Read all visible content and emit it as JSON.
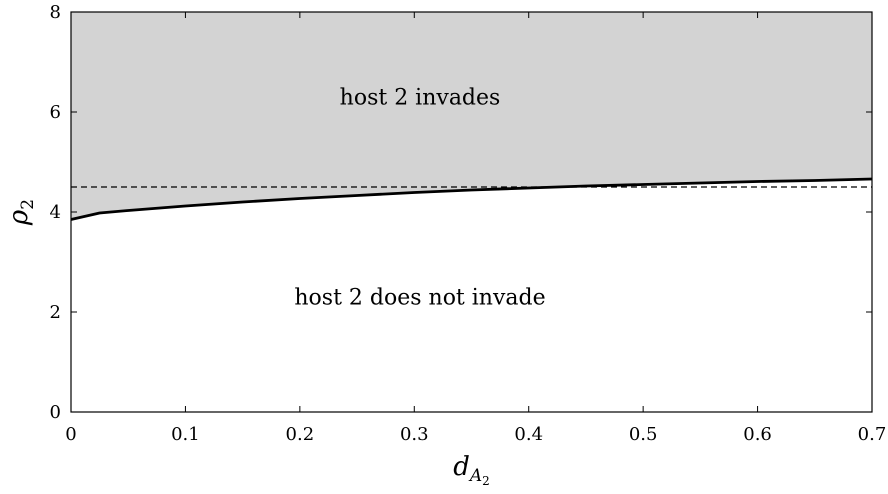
{
  "chart_data": {
    "type": "area",
    "xlabel": {
      "base": "d",
      "sub": "A",
      "subsub": "2"
    },
    "ylabel": {
      "base": "ρ",
      "sub": "2"
    },
    "xlim": [
      0,
      0.7
    ],
    "ylim": [
      0,
      8
    ],
    "x_ticks": [
      0,
      0.1,
      0.2,
      0.3,
      0.4,
      0.5,
      0.6,
      0.7
    ],
    "x_tick_labels": [
      "0",
      "0.1",
      "0.2",
      "0.3",
      "0.4",
      "0.5",
      "0.6",
      "0.7"
    ],
    "y_ticks": [
      0,
      2,
      4,
      6,
      8
    ],
    "y_tick_labels": [
      "0",
      "2",
      "4",
      "6",
      "8"
    ],
    "grid": false,
    "threshold": {
      "y": 4.5,
      "style": "dashed"
    },
    "boundary": {
      "x": [
        0,
        0.025,
        0.05,
        0.1,
        0.15,
        0.2,
        0.25,
        0.3,
        0.35,
        0.4,
        0.45,
        0.5,
        0.55,
        0.6,
        0.65,
        0.7
      ],
      "y": [
        3.85,
        3.98,
        4.03,
        4.12,
        4.2,
        4.27,
        4.33,
        4.39,
        4.44,
        4.48,
        4.52,
        4.55,
        4.58,
        4.61,
        4.63,
        4.66
      ]
    },
    "fill_above_color": "#d3d3d3",
    "annotations": [
      {
        "text": "host 2 invades",
        "x": 0.305,
        "y": 6.15
      },
      {
        "text": "host 2 does not invade",
        "x": 0.305,
        "y": 2.15
      }
    ]
  }
}
